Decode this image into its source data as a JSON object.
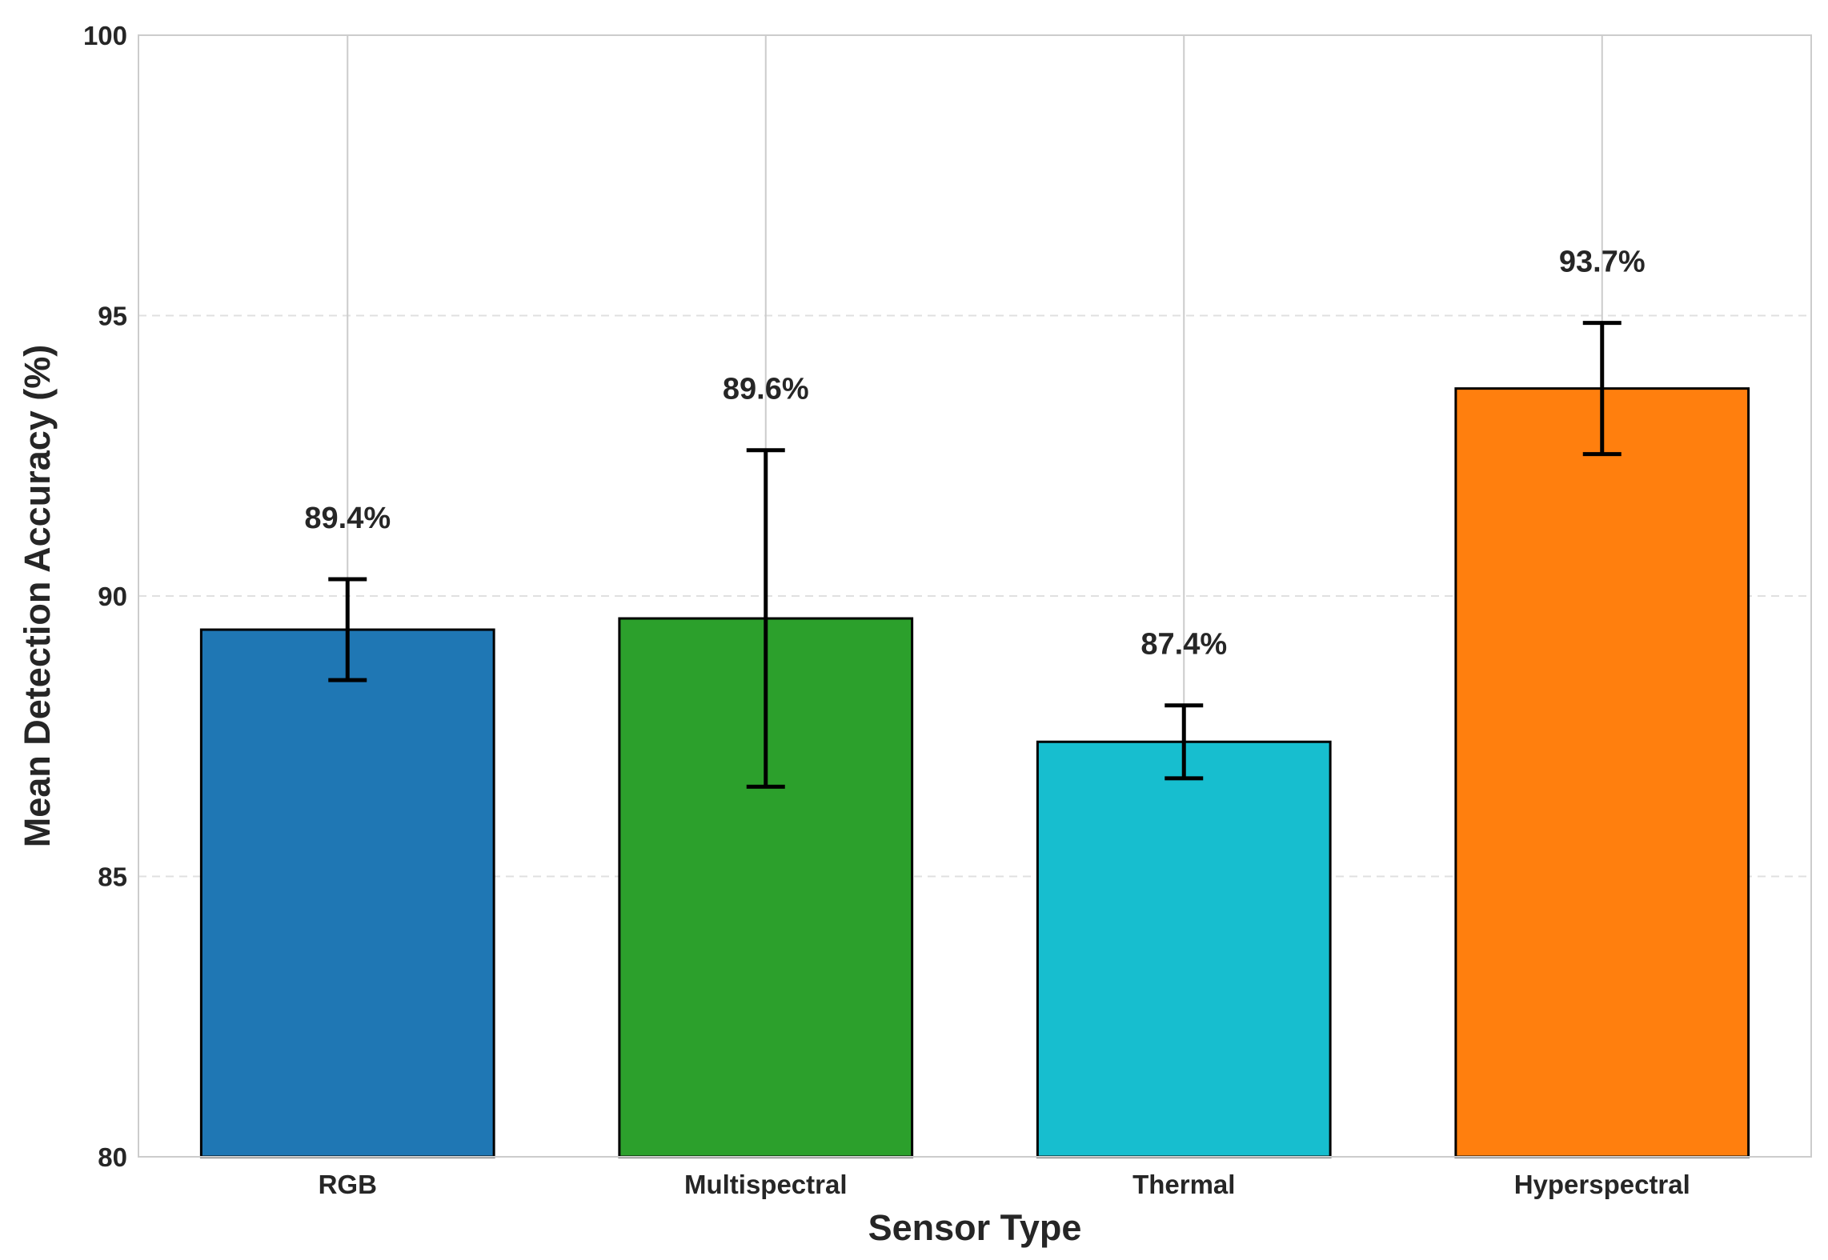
{
  "chart_data": {
    "type": "bar",
    "title": "",
    "xlabel": "Sensor Type",
    "ylabel": "Mean Detection Accuracy (%)",
    "ylim": [
      80,
      100
    ],
    "yticks": [
      80,
      85,
      90,
      95,
      100
    ],
    "grid": "on",
    "legend": "none",
    "categories": [
      "RGB",
      "Multispectral",
      "Thermal",
      "Hyperspectral"
    ],
    "values": [
      89.4,
      89.6,
      87.4,
      93.7
    ],
    "errors": [
      0.9,
      3.0,
      0.65,
      1.17
    ],
    "data_labels": [
      "89.4%",
      "89.6%",
      "87.4%",
      "93.7%"
    ],
    "colors": [
      "#1f77b4",
      "#2ca02c",
      "#17becf",
      "#ff7f0e"
    ]
  }
}
